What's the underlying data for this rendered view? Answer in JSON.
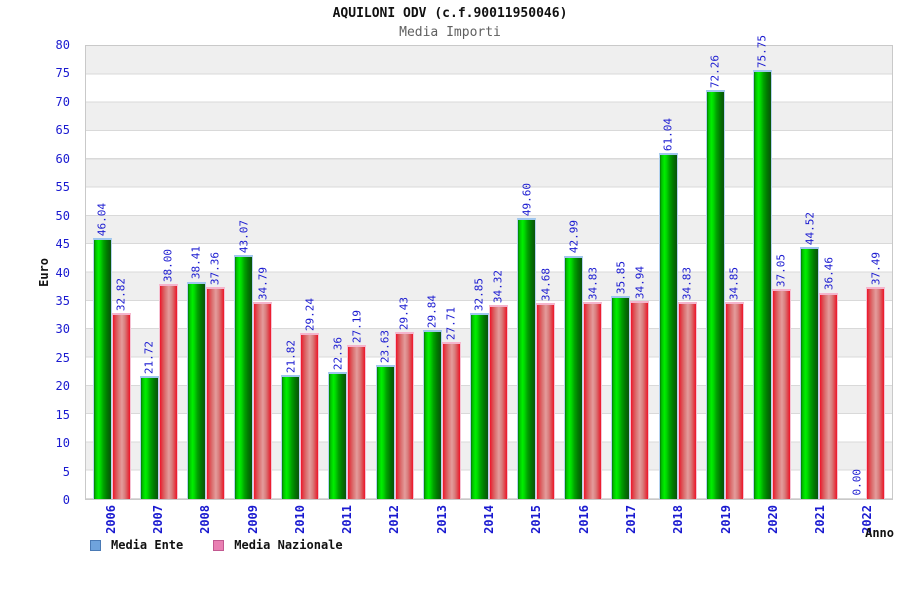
{
  "header": {
    "title": "AQUILONI ODV (c.f.90011950046)",
    "subtitle": "Media Importi"
  },
  "chart_data": {
    "type": "bar",
    "title": "AQUILONI ODV (c.f.90011950046)",
    "subtitle": "Media Importi",
    "xlabel": "Anno",
    "ylabel": "Euro",
    "ylim": [
      0,
      80
    ],
    "ytick_step": 5,
    "grid": true,
    "legend_position": "bottom-left",
    "categories": [
      "2006",
      "2007",
      "2008",
      "2009",
      "2010",
      "2011",
      "2012",
      "2013",
      "2014",
      "2015",
      "2016",
      "2017",
      "2018",
      "2019",
      "2020",
      "2021",
      "2022"
    ],
    "series": [
      {
        "name": "Media Ente",
        "bar_color": "green-gradient",
        "legend_swatch": "#6fa3dc",
        "values": [
          46.04,
          21.72,
          38.41,
          43.07,
          21.82,
          22.36,
          23.63,
          29.84,
          32.85,
          49.6,
          42.99,
          35.85,
          61.04,
          72.26,
          75.75,
          44.52,
          0.0
        ]
      },
      {
        "name": "Media Nazionale",
        "bar_color": "red-gradient",
        "legend_swatch": "#e97fb2",
        "values": [
          32.82,
          38.0,
          37.36,
          34.79,
          29.24,
          27.19,
          29.43,
          27.71,
          34.32,
          34.68,
          34.83,
          34.94,
          34.83,
          34.85,
          37.05,
          36.46,
          37.49
        ]
      }
    ]
  },
  "colors": {
    "tick_label": "#1a1ad0",
    "band_gray": "#efefef",
    "grid_line": "#d9d9d9",
    "plot_border": "#c9c9c9",
    "green_bar_main": "#00d800",
    "red_bar_main": "#e04048",
    "legend_blue": "#6fa3dc",
    "legend_pink": "#e97fb2"
  }
}
